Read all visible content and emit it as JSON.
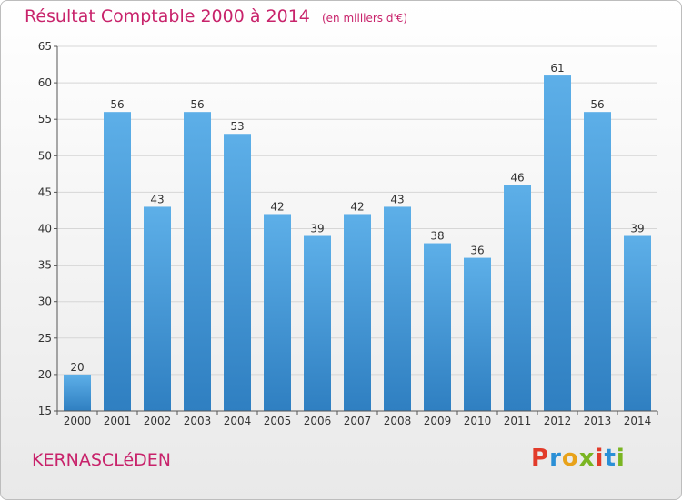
{
  "header": {
    "title": "Résultat Comptable 2000 à 2014",
    "subtitle": "(en milliers d'€)"
  },
  "footer": {
    "commune": "KERNASCLéDEN",
    "brand": "Proxiti"
  },
  "colors": {
    "title": "#c8236b",
    "bar_top": "#5dafe8",
    "bar_bottom": "#2f7fc1",
    "logo_letters": [
      "#e23b2a",
      "#2a8fd6",
      "#e8a21a",
      "#7ab522",
      "#e23b2a",
      "#2a8fd6",
      "#7ab522"
    ]
  },
  "chart_data": {
    "type": "bar",
    "categories": [
      "2000",
      "2001",
      "2002",
      "2003",
      "2004",
      "2005",
      "2006",
      "2007",
      "2008",
      "2009",
      "2010",
      "2011",
      "2012",
      "2013",
      "2014"
    ],
    "values": [
      20,
      56,
      43,
      56,
      53,
      42,
      39,
      42,
      43,
      38,
      36,
      46,
      61,
      56,
      39
    ],
    "ylim": [
      15,
      65
    ],
    "yticks": [
      15,
      20,
      25,
      30,
      35,
      40,
      45,
      50,
      55,
      60,
      65
    ],
    "grid": true,
    "title": "Résultat Comptable 2000 à 2014",
    "xlabel": "",
    "ylabel": ""
  }
}
